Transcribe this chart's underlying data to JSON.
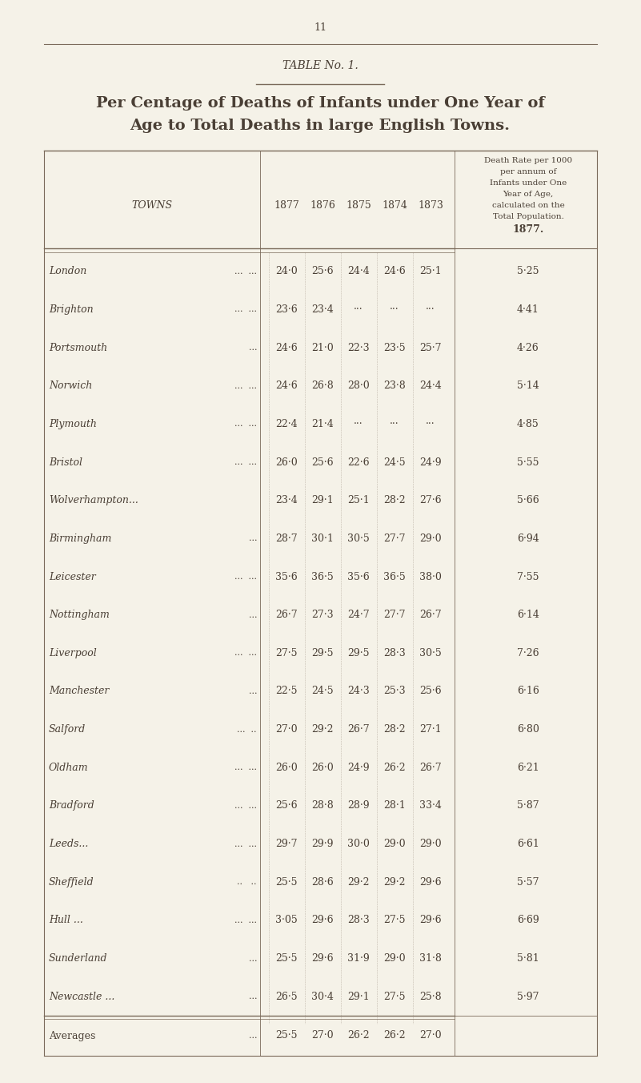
{
  "page_number": "11",
  "table_label": "TABLE No. 1.",
  "title_line1": "Per Centage of Deaths of Infants under One Year of",
  "title_line2": "Age to Total Deaths in large English Towns.",
  "col_header_town": "TOWNS",
  "col_headers_years": [
    "1877",
    "1876",
    "1875",
    "1874",
    "1873"
  ],
  "col_header_rate_lines": [
    "Death Rate per 1000",
    "per annum of",
    "Infants under One",
    "Year of Age,",
    "calculated on the",
    "Total Population.",
    "1877."
  ],
  "rows": [
    {
      "town": "London",
      "dots": "...  ...",
      "y1877": "24·0",
      "y1876": "25·6",
      "y1875": "24·4",
      "y1874": "24·6",
      "y1873": "25·1",
      "rate": "5·25"
    },
    {
      "town": "Brighton",
      "dots": "...  ...",
      "y1877": "23·6",
      "y1876": "23·4",
      "y1875": "···",
      "y1874": "···",
      "y1873": "···",
      "rate": "4·41"
    },
    {
      "town": "Portsmouth",
      "dots": "...",
      "y1877": "24·6",
      "y1876": "21·0",
      "y1875": "22·3",
      "y1874": "23·5",
      "y1873": "25·7",
      "rate": "4·26"
    },
    {
      "town": "Norwich",
      "dots": "...  ...",
      "y1877": "24·6",
      "y1876": "26·8",
      "y1875": "28·0",
      "y1874": "23·8",
      "y1873": "24·4",
      "rate": "5·14"
    },
    {
      "town": "Plymouth",
      "dots": "...  ...",
      "y1877": "22·4",
      "y1876": "21·4",
      "y1875": "···",
      "y1874": "···",
      "y1873": "···",
      "rate": "4·85"
    },
    {
      "town": "Bristol",
      "dots": "...  ...",
      "y1877": "26·0",
      "y1876": "25·6",
      "y1875": "22·6",
      "y1874": "24·5",
      "y1873": "24·9",
      "rate": "5·55"
    },
    {
      "town": "Wolverhampton...",
      "dots": "",
      "y1877": "23·4",
      "y1876": "29·1",
      "y1875": "25·1",
      "y1874": "28·2",
      "y1873": "27·6",
      "rate": "5·66"
    },
    {
      "town": "Birmingham",
      "dots": "...",
      "y1877": "28·7",
      "y1876": "30·1",
      "y1875": "30·5",
      "y1874": "27·7",
      "y1873": "29·0",
      "rate": "6·94"
    },
    {
      "town": "Leicester",
      "dots": "...  ...",
      "y1877": "35·6",
      "y1876": "36·5",
      "y1875": "35·6",
      "y1874": "36·5",
      "y1873": "38·0",
      "rate": "7·55"
    },
    {
      "town": "Nottingham",
      "dots": "...",
      "y1877": "26·7",
      "y1876": "27·3",
      "y1875": "24·7",
      "y1874": "27·7",
      "y1873": "26·7",
      "rate": "6·14"
    },
    {
      "town": "Liverpool",
      "dots": "...  ...",
      "y1877": "27·5",
      "y1876": "29·5",
      "y1875": "29·5",
      "y1874": "28·3",
      "y1873": "30·5",
      "rate": "7·26"
    },
    {
      "town": "Manchester",
      "dots": "...",
      "y1877": "22·5",
      "y1876": "24·5",
      "y1875": "24·3",
      "y1874": "25·3",
      "y1873": "25·6",
      "rate": "6·16"
    },
    {
      "town": "Salford",
      "dots": "...  ..",
      "y1877": "27·0",
      "y1876": "29·2",
      "y1875": "26·7",
      "y1874": "28·2",
      "y1873": "27·1",
      "rate": "6·80"
    },
    {
      "town": "Oldham",
      "dots": "...  ...",
      "y1877": "26·0",
      "y1876": "26·0",
      "y1875": "24·9",
      "y1874": "26·2",
      "y1873": "26·7",
      "rate": "6·21"
    },
    {
      "town": "Bradford",
      "dots": "...  ...",
      "y1877": "25·6",
      "y1876": "28·8",
      "y1875": "28·9",
      "y1874": "28·1",
      "y1873": "33·4",
      "rate": "5·87"
    },
    {
      "town": "Leeds...",
      "dots": "...  ...",
      "y1877": "29·7",
      "y1876": "29·9",
      "y1875": "30·0",
      "y1874": "29·0",
      "y1873": "29·0",
      "rate": "6·61"
    },
    {
      "town": "Sheffield",
      "dots": "..   ..",
      "y1877": "25·5",
      "y1876": "28·6",
      "y1875": "29·2",
      "y1874": "29·2",
      "y1873": "29·6",
      "rate": "5·57"
    },
    {
      "town": "Hull ...",
      "dots": "...  ...",
      "y1877": "3·05",
      "y1876": "29·6",
      "y1875": "28·3",
      "y1874": "27·5",
      "y1873": "29·6",
      "rate": "6·69"
    },
    {
      "town": "Sunderland",
      "dots": "...",
      "y1877": "25·5",
      "y1876": "29·6",
      "y1875": "31·9",
      "y1874": "29·0",
      "y1873": "31·8",
      "rate": "5·81"
    },
    {
      "town": "Newcastle ...",
      "dots": "...",
      "y1877": "26·5",
      "y1876": "30·4",
      "y1875": "29·1",
      "y1874": "27·5",
      "y1873": "25·8",
      "rate": "5·97"
    }
  ],
  "averages_row": {
    "town": "Averages",
    "dots": "...",
    "y1877": "25·5",
    "y1876": "27·0",
    "y1875": "26·2",
    "y1874": "26·2",
    "y1873": "27·0",
    "rate": ""
  },
  "bg_color": "#f5f2e8",
  "text_color": "#4a3f35",
  "line_color": "#7a6a5a",
  "title_fontsize": 14,
  "header_fontsize": 9,
  "body_fontsize": 9,
  "small_fontsize": 7.5
}
